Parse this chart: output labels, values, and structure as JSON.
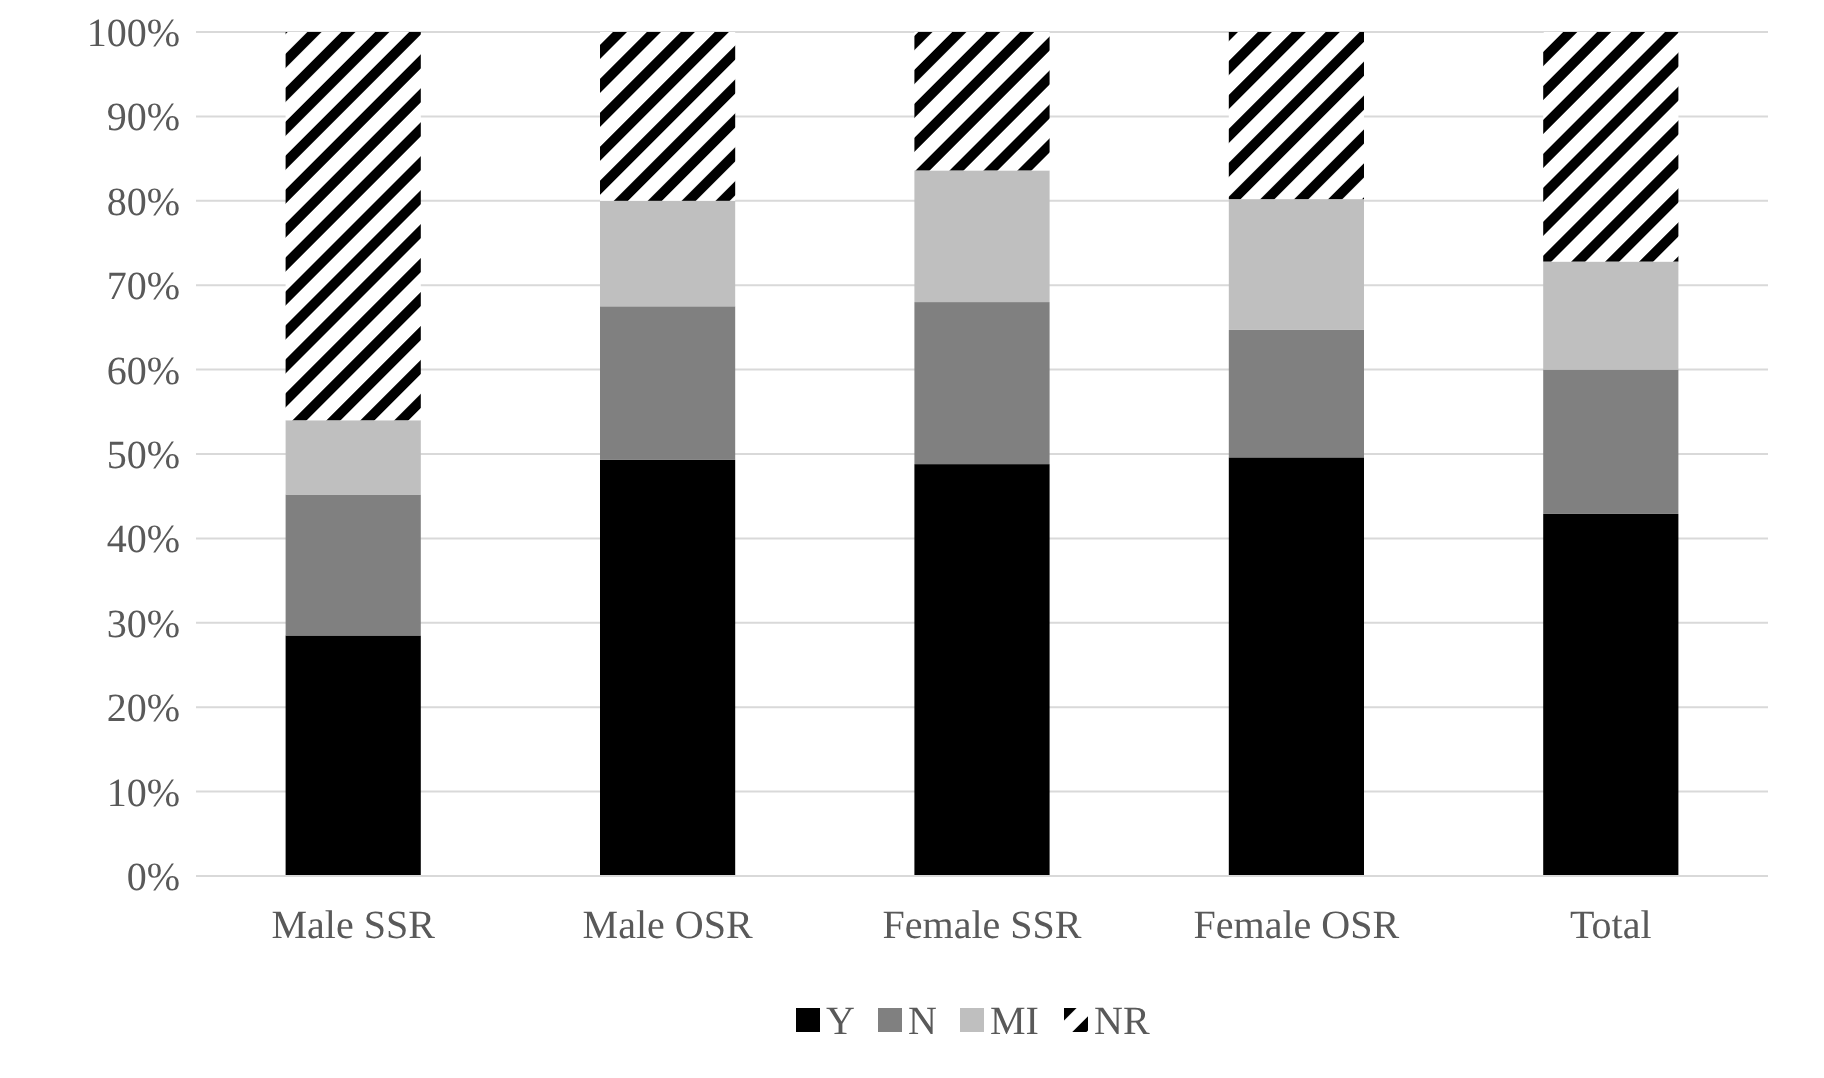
{
  "chart_data": {
    "type": "bar",
    "stacked": true,
    "categories": [
      "Male SSR",
      "Male OSR",
      "Female SSR",
      "Female OSR",
      "Total"
    ],
    "series": [
      {
        "name": "Y",
        "color": "#000000",
        "values": [
          28.5,
          49.3,
          48.8,
          49.6,
          42.9
        ]
      },
      {
        "name": "N",
        "color": "#808080",
        "values": [
          16.7,
          18.2,
          19.2,
          15.1,
          17.1
        ]
      },
      {
        "name": "MI",
        "color": "#bfbfbf",
        "values": [
          8.8,
          12.5,
          15.6,
          15.5,
          12.8
        ]
      },
      {
        "name": "NR",
        "color": "#000000",
        "values": [
          46,
          20,
          16.4,
          19.8,
          27.2
        ]
      }
    ],
    "ylim": [
      0,
      100
    ],
    "yticks": [
      {
        "value": 0,
        "label": "0%"
      },
      {
        "value": 10,
        "label": "10%"
      },
      {
        "value": 20,
        "label": "20%"
      },
      {
        "value": 30,
        "label": "30%"
      },
      {
        "value": 40,
        "label": "40%"
      },
      {
        "value": 50,
        "label": "50%"
      },
      {
        "value": 60,
        "label": "60%"
      },
      {
        "value": 70,
        "label": "70%"
      },
      {
        "value": 80,
        "label": "80%"
      },
      {
        "value": 90,
        "label": "90%"
      },
      {
        "value": 100,
        "label": "100%"
      }
    ],
    "grid": "y",
    "legend": "bottom"
  }
}
